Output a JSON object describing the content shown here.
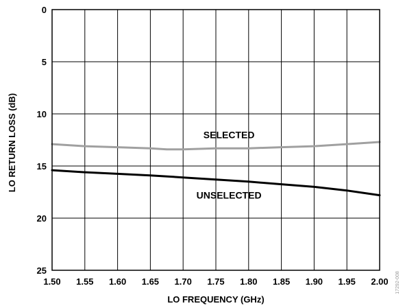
{
  "chart_data": {
    "type": "line",
    "xlabel": "LO FREQUENCY (GHz)",
    "ylabel": "LO RETURN LOSS (dB)",
    "xlim": [
      1.5,
      2.0
    ],
    "ylim": [
      0,
      25
    ],
    "y_inverted": true,
    "grid": true,
    "x_ticks": [
      "1.50",
      "1.55",
      "1.60",
      "1.65",
      "1.70",
      "1.75",
      "1.80",
      "1.85",
      "1.90",
      "1.95",
      "2.00"
    ],
    "y_ticks": [
      "0",
      "5",
      "10",
      "15",
      "20",
      "25"
    ],
    "series": [
      {
        "name": "SELECTED",
        "color": "#a0a0a0",
        "x": [
          1.5,
          1.55,
          1.6,
          1.65,
          1.675,
          1.7,
          1.75,
          1.8,
          1.85,
          1.9,
          1.95,
          2.0
        ],
        "y": [
          12.9,
          13.1,
          13.2,
          13.3,
          13.4,
          13.4,
          13.3,
          13.3,
          13.2,
          13.1,
          12.9,
          12.7
        ]
      },
      {
        "name": "UNSELECTED",
        "color": "#000000",
        "x": [
          1.5,
          1.55,
          1.6,
          1.65,
          1.7,
          1.75,
          1.8,
          1.85,
          1.9,
          1.95,
          2.0
        ],
        "y": [
          15.4,
          15.6,
          15.75,
          15.9,
          16.1,
          16.3,
          16.5,
          16.75,
          17.0,
          17.35,
          17.8
        ]
      }
    ],
    "annotations": [
      {
        "text": "SELECTED",
        "x": 1.77,
        "y": 12.0
      },
      {
        "text": "UNSELECTED",
        "x": 1.77,
        "y": 17.8
      }
    ],
    "figure_id": "17292-008"
  }
}
